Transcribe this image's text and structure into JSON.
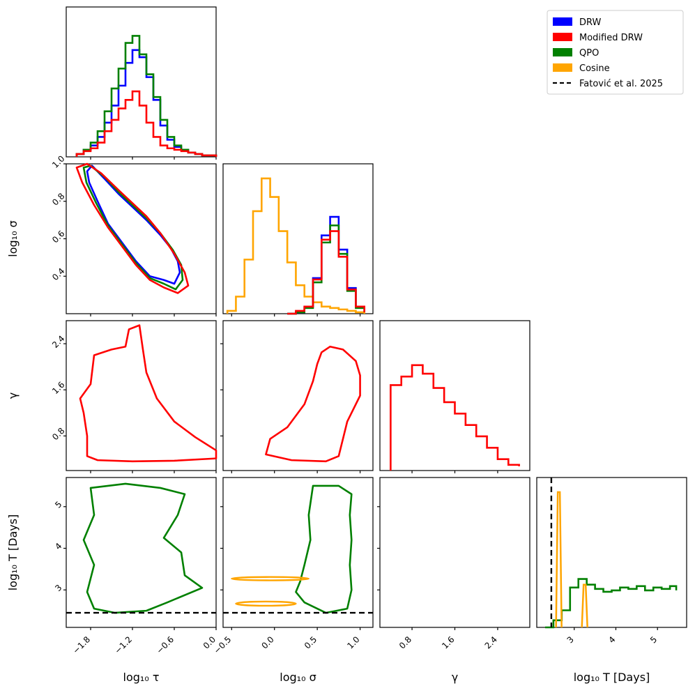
{
  "chart_data": {
    "type": "corner",
    "legend": {
      "placement": "top-right",
      "entries": [
        {
          "label": "DRW",
          "color": "#0000ff",
          "style": "patch"
        },
        {
          "label": "Modified DRW",
          "color": "#ff0000",
          "style": "patch"
        },
        {
          "label": "QPO",
          "color": "#008000",
          "style": "patch"
        },
        {
          "label": "Cosine",
          "color": "#ffa500",
          "style": "patch"
        },
        {
          "label": "Fatović et al. 2025",
          "color": "#000000",
          "style": "dashed"
        }
      ]
    },
    "parameters": [
      {
        "id": "tau",
        "label": "log₁₀ τ",
        "range": [
          -2.15,
          0.0
        ]
      },
      {
        "id": "sigma",
        "label": "log₁₀ σ",
        "range": [
          -0.6,
          1.15
        ]
      },
      {
        "id": "gamma",
        "label": "γ",
        "range": [
          0.2,
          3.0
        ]
      },
      {
        "id": "T",
        "label": "log₁₀ T [Days]",
        "range": [
          2.1,
          5.7
        ]
      }
    ],
    "x_ticks": {
      "tau": [
        "−1.8",
        "−1.2",
        "−0.6",
        "0.0"
      ],
      "sigma": [
        "−0.5",
        "0.0",
        "0.5",
        "1.0"
      ],
      "gamma": [
        "0.8",
        "1.6",
        "2.4"
      ],
      "T": [
        "3",
        "4",
        "5"
      ]
    },
    "x_tick_values": {
      "tau": [
        -1.8,
        -1.2,
        -0.6,
        0.0
      ],
      "sigma": [
        -0.5,
        0.0,
        0.5,
        1.0
      ],
      "gamma": [
        0.8,
        1.6,
        2.4
      ],
      "T": [
        3,
        4,
        5
      ]
    },
    "y_ticks": {
      "sigma": [
        "0.4",
        "0.6",
        "0.8",
        "1.0"
      ],
      "gamma": [
        "0.8",
        "1.6",
        "2.4"
      ],
      "T": [
        "3",
        "4",
        "5"
      ]
    },
    "y_tick_values": {
      "sigma": [
        0.4,
        0.6,
        0.8,
        1.0
      ],
      "gamma": [
        0.8,
        1.6,
        2.4
      ],
      "T": [
        3,
        4,
        5
      ]
    },
    "y_ranges": {
      "sigma": [
        0.2,
        1.0
      ],
      "gamma": [
        0.2,
        2.8
      ],
      "T": [
        2.1,
        5.7
      ]
    },
    "reference_line": {
      "label": "Fatović et al. 2025",
      "parameter": "T",
      "value": 2.45
    },
    "histograms": [
      {
        "panel": "tau",
        "model": "DRW",
        "color": "#0000ff",
        "x": [
          -2.0,
          -1.9,
          -1.8,
          -1.7,
          -1.6,
          -1.5,
          -1.4,
          -1.3,
          -1.2,
          -1.1,
          -1.0,
          -0.9,
          -0.8,
          -0.7,
          -0.6,
          -0.5,
          -0.4,
          -0.3,
          -0.2,
          -0.1,
          0.0
        ],
        "y": [
          0.02,
          0.05,
          0.08,
          0.14,
          0.24,
          0.36,
          0.5,
          0.66,
          0.75,
          0.7,
          0.56,
          0.4,
          0.22,
          0.12,
          0.07,
          0.05,
          0.03,
          0.02,
          0.01,
          0.01,
          0.0
        ]
      },
      {
        "panel": "tau",
        "model": "QPO",
        "color": "#008000",
        "x": [
          -2.0,
          -1.9,
          -1.8,
          -1.7,
          -1.6,
          -1.5,
          -1.4,
          -1.3,
          -1.2,
          -1.1,
          -1.0,
          -0.9,
          -0.8,
          -0.7,
          -0.6,
          -0.5,
          -0.4,
          -0.3,
          -0.2,
          -0.1,
          0.0
        ],
        "y": [
          0.02,
          0.05,
          0.1,
          0.18,
          0.32,
          0.48,
          0.62,
          0.8,
          0.85,
          0.72,
          0.58,
          0.42,
          0.26,
          0.14,
          0.08,
          0.05,
          0.03,
          0.02,
          0.01,
          0.01,
          0.0
        ]
      },
      {
        "panel": "tau",
        "model": "Modified DRW",
        "color": "#ff0000",
        "x": [
          -2.0,
          -1.9,
          -1.8,
          -1.7,
          -1.6,
          -1.5,
          -1.4,
          -1.3,
          -1.2,
          -1.1,
          -1.0,
          -0.9,
          -0.8,
          -0.7,
          -0.6,
          -0.5,
          -0.4,
          -0.3,
          -0.2,
          -0.1,
          0.0
        ],
        "y": [
          0.02,
          0.04,
          0.06,
          0.1,
          0.18,
          0.26,
          0.34,
          0.4,
          0.46,
          0.36,
          0.24,
          0.14,
          0.08,
          0.06,
          0.05,
          0.04,
          0.03,
          0.02,
          0.01,
          0.01,
          0.0
        ]
      },
      {
        "panel": "sigma",
        "model": "Cosine",
        "color": "#ffa500",
        "x": [
          -0.55,
          -0.45,
          -0.35,
          -0.25,
          -0.15,
          -0.05,
          0.05,
          0.15,
          0.25,
          0.35,
          0.45,
          0.55,
          0.65,
          0.75,
          0.85,
          0.95,
          1.05
        ],
        "y": [
          0.02,
          0.12,
          0.38,
          0.72,
          0.95,
          0.82,
          0.58,
          0.36,
          0.2,
          0.12,
          0.08,
          0.05,
          0.04,
          0.03,
          0.02,
          0.01,
          0.0
        ]
      },
      {
        "panel": "sigma",
        "model": "DRW",
        "color": "#0000ff",
        "x": [
          0.15,
          0.25,
          0.35,
          0.45,
          0.55,
          0.65,
          0.75,
          0.85,
          0.95,
          1.05
        ],
        "y": [
          0.0,
          0.01,
          0.05,
          0.25,
          0.55,
          0.68,
          0.45,
          0.18,
          0.05,
          0.01
        ]
      },
      {
        "panel": "sigma",
        "model": "QPO",
        "color": "#008000",
        "x": [
          0.15,
          0.25,
          0.35,
          0.45,
          0.55,
          0.65,
          0.75,
          0.85,
          0.95,
          1.05
        ],
        "y": [
          0.0,
          0.01,
          0.04,
          0.22,
          0.5,
          0.62,
          0.42,
          0.16,
          0.04,
          0.01
        ]
      },
      {
        "panel": "sigma",
        "model": "Modified DRW",
        "color": "#ff0000",
        "x": [
          0.15,
          0.25,
          0.35,
          0.45,
          0.55,
          0.65,
          0.75,
          0.85,
          0.95,
          1.05
        ],
        "y": [
          0.0,
          0.02,
          0.05,
          0.24,
          0.52,
          0.58,
          0.4,
          0.17,
          0.05,
          0.01
        ]
      },
      {
        "panel": "gamma",
        "model": "Modified DRW",
        "color": "#ff0000",
        "x": [
          0.4,
          0.6,
          0.8,
          1.0,
          1.2,
          1.4,
          1.6,
          1.8,
          2.0,
          2.2,
          2.4,
          2.6,
          2.8
        ],
        "y": [
          0.6,
          0.66,
          0.74,
          0.68,
          0.58,
          0.48,
          0.4,
          0.32,
          0.24,
          0.16,
          0.08,
          0.04,
          0.03
        ]
      },
      {
        "panel": "T",
        "model": "QPO",
        "color": "#008000",
        "x": [
          2.3,
          2.5,
          2.7,
          2.9,
          3.1,
          3.3,
          3.5,
          3.7,
          3.9,
          4.1,
          4.3,
          4.5,
          4.7,
          4.9,
          5.1,
          5.3,
          5.45
        ],
        "y": [
          0.0,
          0.05,
          0.12,
          0.28,
          0.34,
          0.3,
          0.27,
          0.25,
          0.26,
          0.28,
          0.27,
          0.29,
          0.26,
          0.28,
          0.27,
          0.29,
          0.26
        ]
      },
      {
        "panel": "T",
        "model": "Cosine",
        "color": "#ffa500",
        "peaks": [
          {
            "x": 2.63,
            "height": 0.95
          },
          {
            "x": 3.25,
            "height": 0.3
          }
        ]
      }
    ],
    "contours": [
      {
        "panel": "tau_sigma",
        "model": "DRW",
        "color": "#0000ff",
        "points": [
          [
            -1.85,
            0.96
          ],
          [
            -1.78,
            0.99
          ],
          [
            -1.6,
            0.92
          ],
          [
            -1.4,
            0.84
          ],
          [
            -1.2,
            0.77
          ],
          [
            -1.0,
            0.7
          ],
          [
            -0.8,
            0.62
          ],
          [
            -0.65,
            0.55
          ],
          [
            -0.55,
            0.48
          ],
          [
            -0.52,
            0.42
          ],
          [
            -0.6,
            0.36
          ],
          [
            -0.75,
            0.38
          ],
          [
            -0.95,
            0.4
          ],
          [
            -1.15,
            0.48
          ],
          [
            -1.35,
            0.58
          ],
          [
            -1.55,
            0.68
          ],
          [
            -1.7,
            0.8
          ],
          [
            -1.82,
            0.9
          ],
          [
            -1.85,
            0.96
          ]
        ]
      },
      {
        "panel": "tau_sigma",
        "model": "QPO",
        "color": "#008000",
        "points": [
          [
            -1.9,
            0.98
          ],
          [
            -1.8,
            0.99
          ],
          [
            -1.6,
            0.93
          ],
          [
            -1.4,
            0.85
          ],
          [
            -1.2,
            0.78
          ],
          [
            -1.0,
            0.71
          ],
          [
            -0.8,
            0.63
          ],
          [
            -0.62,
            0.54
          ],
          [
            -0.5,
            0.46
          ],
          [
            -0.48,
            0.38
          ],
          [
            -0.58,
            0.33
          ],
          [
            -0.75,
            0.36
          ],
          [
            -0.95,
            0.39
          ],
          [
            -1.15,
            0.47
          ],
          [
            -1.35,
            0.57
          ],
          [
            -1.55,
            0.67
          ],
          [
            -1.72,
            0.79
          ],
          [
            -1.86,
            0.9
          ],
          [
            -1.9,
            0.98
          ]
        ]
      },
      {
        "panel": "tau_sigma",
        "model": "Modified DRW",
        "color": "#ff0000",
        "points": [
          [
            -2.0,
            0.98
          ],
          [
            -1.85,
            1.0
          ],
          [
            -1.65,
            0.95
          ],
          [
            -1.4,
            0.86
          ],
          [
            -1.2,
            0.79
          ],
          [
            -1.0,
            0.72
          ],
          [
            -0.8,
            0.63
          ],
          [
            -0.6,
            0.52
          ],
          [
            -0.45,
            0.42
          ],
          [
            -0.4,
            0.35
          ],
          [
            -0.55,
            0.31
          ],
          [
            -0.75,
            0.34
          ],
          [
            -0.95,
            0.38
          ],
          [
            -1.15,
            0.46
          ],
          [
            -1.35,
            0.56
          ],
          [
            -1.55,
            0.66
          ],
          [
            -1.75,
            0.78
          ],
          [
            -1.92,
            0.9
          ],
          [
            -2.0,
            0.98
          ]
        ]
      },
      {
        "panel": "tau_gamma",
        "model": "Modified DRW",
        "color": "#ff0000",
        "points": [
          [
            -1.85,
            0.45
          ],
          [
            -1.7,
            0.38
          ],
          [
            -1.2,
            0.36
          ],
          [
            -0.6,
            0.37
          ],
          [
            0.0,
            0.41
          ],
          [
            0.0,
            0.55
          ],
          [
            -0.3,
            0.78
          ],
          [
            -0.6,
            1.05
          ],
          [
            -0.85,
            1.45
          ],
          [
            -1.0,
            1.9
          ],
          [
            -1.05,
            2.3
          ],
          [
            -1.1,
            2.72
          ],
          [
            -1.25,
            2.65
          ],
          [
            -1.3,
            2.35
          ],
          [
            -1.5,
            2.3
          ],
          [
            -1.75,
            2.2
          ],
          [
            -1.8,
            1.7
          ],
          [
            -1.95,
            1.45
          ],
          [
            -1.9,
            1.2
          ],
          [
            -1.85,
            0.8
          ],
          [
            -1.85,
            0.45
          ]
        ]
      },
      {
        "panel": "sigma_gamma",
        "model": "Modified DRW",
        "color": "#ff0000",
        "points": [
          [
            -0.1,
            0.48
          ],
          [
            0.2,
            0.38
          ],
          [
            0.6,
            0.36
          ],
          [
            0.75,
            0.45
          ],
          [
            0.8,
            0.75
          ],
          [
            0.85,
            1.05
          ],
          [
            1.0,
            1.5
          ],
          [
            1.0,
            1.85
          ],
          [
            0.95,
            2.1
          ],
          [
            0.8,
            2.3
          ],
          [
            0.65,
            2.35
          ],
          [
            0.55,
            2.25
          ],
          [
            0.5,
            2.05
          ],
          [
            0.45,
            1.75
          ],
          [
            0.35,
            1.35
          ],
          [
            0.15,
            0.95
          ],
          [
            -0.05,
            0.75
          ],
          [
            -0.1,
            0.48
          ]
        ]
      },
      {
        "panel": "tau_T",
        "model": "QPO",
        "color": "#008000",
        "points": [
          [
            -1.85,
            2.95
          ],
          [
            -1.75,
            2.55
          ],
          [
            -1.45,
            2.45
          ],
          [
            -1.0,
            2.5
          ],
          [
            -0.7,
            2.7
          ],
          [
            -0.2,
            3.05
          ],
          [
            -0.45,
            3.35
          ],
          [
            -0.5,
            3.9
          ],
          [
            -0.75,
            4.25
          ],
          [
            -0.55,
            4.8
          ],
          [
            -0.45,
            5.3
          ],
          [
            -0.8,
            5.45
          ],
          [
            -1.3,
            5.55
          ],
          [
            -1.8,
            5.45
          ],
          [
            -1.75,
            4.8
          ],
          [
            -1.9,
            4.2
          ],
          [
            -1.75,
            3.6
          ],
          [
            -1.85,
            2.95
          ]
        ]
      },
      {
        "panel": "sigma_T",
        "model": "QPO",
        "color": "#008000",
        "points": [
          [
            0.25,
            2.95
          ],
          [
            0.35,
            2.7
          ],
          [
            0.6,
            2.45
          ],
          [
            0.85,
            2.55
          ],
          [
            0.9,
            3.0
          ],
          [
            0.88,
            3.6
          ],
          [
            0.9,
            4.2
          ],
          [
            0.88,
            4.8
          ],
          [
            0.9,
            5.3
          ],
          [
            0.75,
            5.5
          ],
          [
            0.45,
            5.5
          ],
          [
            0.4,
            4.8
          ],
          [
            0.42,
            4.2
          ],
          [
            0.35,
            3.6
          ],
          [
            0.3,
            3.2
          ],
          [
            0.25,
            2.95
          ]
        ]
      },
      {
        "panel": "sigma_T",
        "model": "Cosine",
        "color": "#ffa500",
        "ellipses": [
          {
            "cx": -0.05,
            "cy": 3.27,
            "rx": 0.45,
            "ry": 0.04
          },
          {
            "cx": -0.1,
            "cy": 2.67,
            "rx": 0.35,
            "ry": 0.05
          }
        ]
      }
    ]
  }
}
